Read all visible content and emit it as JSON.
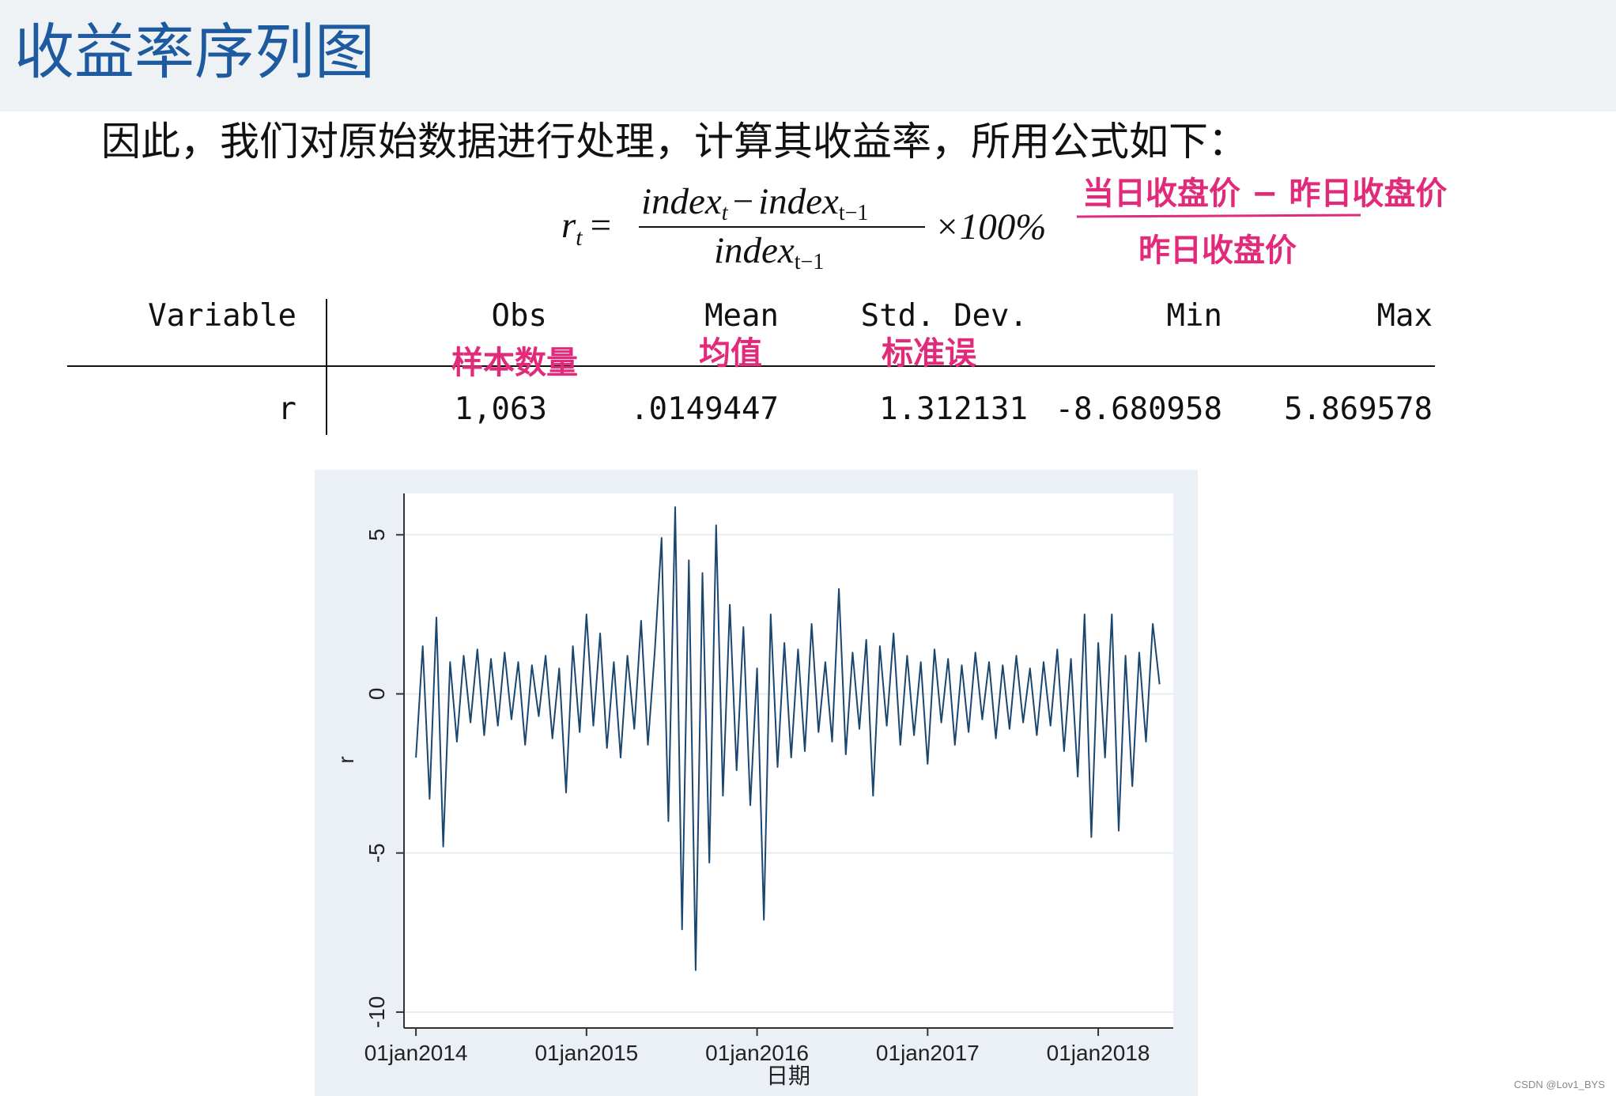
{
  "header": {
    "title": "收益率序列图"
  },
  "intro": "因此，我们对原始数据进行处理，计算其收益率，所用公式如下：",
  "formula": {
    "lhs": "r",
    "lhs_sub": "t",
    "equals": "=",
    "num_a": "index",
    "num_a_sub": "t",
    "minus": "−",
    "num_b": "index",
    "num_b_sub": "t−1",
    "den": "index",
    "den_sub": "t−1",
    "times": "×100%"
  },
  "annotations": {
    "numerator_note": "当日收盘价 − 昨日收盘价",
    "denominator_note": "昨日收盘价",
    "obs_note": "样本数量",
    "mean_note": "均值",
    "sd_note": "标准误"
  },
  "table": {
    "columns": [
      "Variable",
      "Obs",
      "Mean",
      "Std. Dev.",
      "Min",
      "Max"
    ],
    "rows": [
      [
        "r",
        "1,063",
        ".0149447",
        "1.312131",
        "-8.680958",
        "5.869578"
      ]
    ]
  },
  "chart_data": {
    "type": "line",
    "y_label": "r",
    "x_label": "日期",
    "color": "#1a476f",
    "grid": true,
    "xlim": [
      2013.93,
      2018.44
    ],
    "ylim": [
      -10.5,
      6.3
    ],
    "xticks": [
      {
        "value": 2014,
        "label": "01jan2014"
      },
      {
        "value": 2015,
        "label": "01jan2015"
      },
      {
        "value": 2016,
        "label": "01jan2016"
      },
      {
        "value": 2017,
        "label": "01jan2017"
      },
      {
        "value": 2018,
        "label": "01jan2018"
      }
    ],
    "yticks": [
      -10,
      -5,
      0,
      5
    ],
    "x": [
      2014.0,
      2014.04,
      2014.08,
      2014.12,
      2014.16,
      2014.2,
      2014.24,
      2014.28,
      2014.32,
      2014.36,
      2014.4,
      2014.44,
      2014.48,
      2014.52,
      2014.56,
      2014.6,
      2014.64,
      2014.68,
      2014.72,
      2014.76,
      2014.8,
      2014.84,
      2014.88,
      2014.92,
      2014.96,
      2015.0,
      2015.04,
      2015.08,
      2015.12,
      2015.16,
      2015.2,
      2015.24,
      2015.28,
      2015.32,
      2015.36,
      2015.4,
      2015.44,
      2015.48,
      2015.52,
      2015.56,
      2015.6,
      2015.64,
      2015.68,
      2015.72,
      2015.76,
      2015.8,
      2015.84,
      2015.88,
      2015.92,
      2015.96,
      2016.0,
      2016.04,
      2016.08,
      2016.12,
      2016.16,
      2016.2,
      2016.24,
      2016.28,
      2016.32,
      2016.36,
      2016.4,
      2016.44,
      2016.48,
      2016.52,
      2016.56,
      2016.6,
      2016.64,
      2016.68,
      2016.72,
      2016.76,
      2016.8,
      2016.84,
      2016.88,
      2016.92,
      2016.96,
      2017.0,
      2017.04,
      2017.08,
      2017.12,
      2017.16,
      2017.2,
      2017.24,
      2017.28,
      2017.32,
      2017.36,
      2017.4,
      2017.44,
      2017.48,
      2017.52,
      2017.56,
      2017.6,
      2017.64,
      2017.68,
      2017.72,
      2017.76,
      2017.8,
      2017.84,
      2017.88,
      2017.92,
      2017.96,
      2018.0,
      2018.04,
      2018.08,
      2018.12,
      2018.16,
      2018.2,
      2018.24,
      2018.28,
      2018.32,
      2018.36
    ],
    "values": [
      -2.0,
      1.5,
      -3.3,
      2.4,
      -4.8,
      1.0,
      -1.5,
      1.2,
      -0.9,
      1.4,
      -1.3,
      1.1,
      -1.0,
      1.3,
      -0.8,
      1.0,
      -1.6,
      0.9,
      -0.7,
      1.2,
      -1.4,
      0.8,
      -3.1,
      1.5,
      -1.2,
      2.5,
      -1.0,
      1.9,
      -1.7,
      1.0,
      -2.0,
      1.2,
      -1.1,
      2.3,
      -1.6,
      1.3,
      4.9,
      -4.0,
      5.87,
      -7.4,
      4.2,
      -8.68,
      3.8,
      -5.3,
      5.3,
      -3.2,
      2.8,
      -2.4,
      2.1,
      -3.5,
      0.8,
      -7.1,
      2.5,
      -2.3,
      1.6,
      -2.0,
      1.4,
      -1.8,
      2.2,
      -1.2,
      1.0,
      -1.5,
      3.3,
      -1.9,
      1.3,
      -1.1,
      1.7,
      -3.2,
      1.5,
      -1.0,
      1.9,
      -1.6,
      1.2,
      -1.3,
      1.0,
      -2.2,
      1.4,
      -0.9,
      1.1,
      -1.6,
      0.9,
      -1.2,
      1.3,
      -0.8,
      1.0,
      -1.4,
      0.9,
      -1.1,
      1.2,
      -0.9,
      0.8,
      -1.3,
      1.0,
      -1.0,
      1.4,
      -1.8,
      1.1,
      -2.6,
      2.5,
      -4.5,
      1.6,
      -2.0,
      2.5,
      -4.3,
      1.2,
      -2.9,
      1.3,
      -1.5,
      2.2,
      0.3
    ]
  },
  "watermark": "CSDN @Lov1_BYS"
}
